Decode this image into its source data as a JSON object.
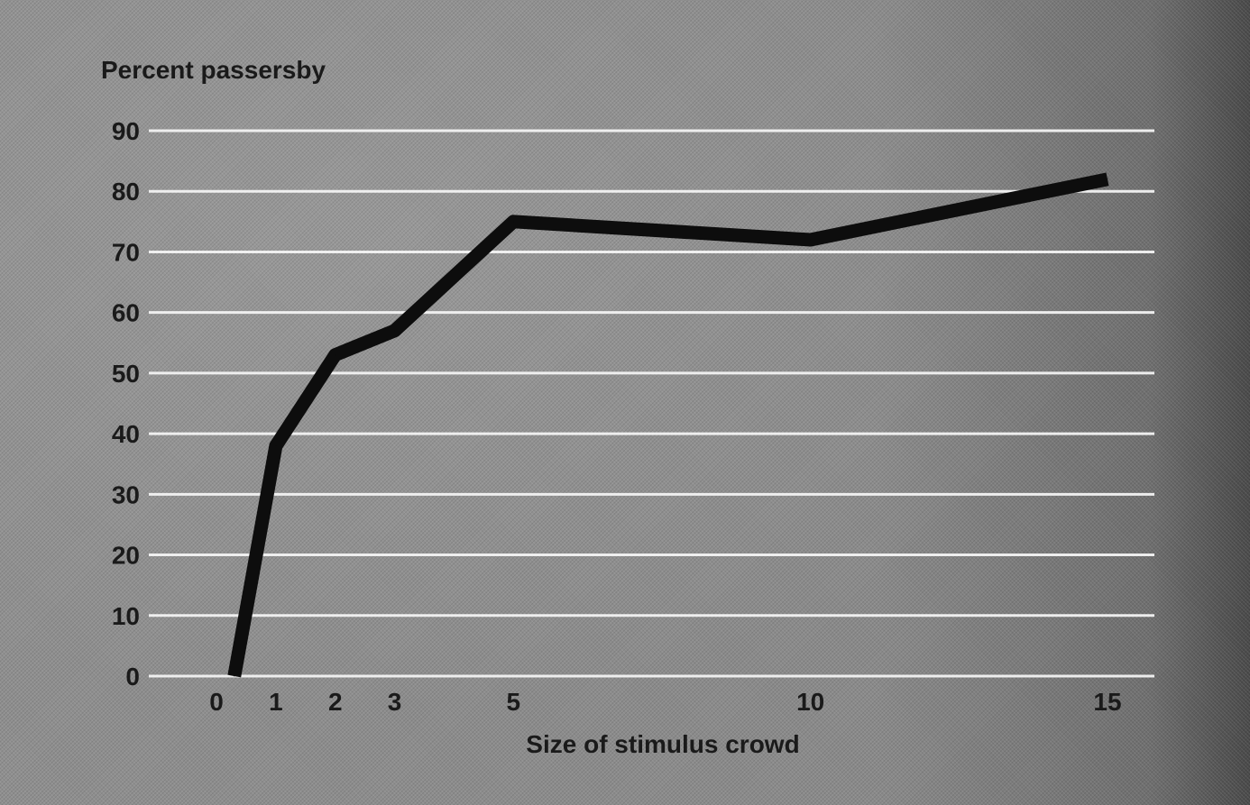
{
  "chart_data": {
    "type": "line",
    "ylabel": "Percent passersby",
    "xlabel": "Size of stimulus crowd",
    "y_ticks": [
      "0",
      "10",
      "20",
      "30",
      "40",
      "50",
      "60",
      "70",
      "80",
      "90"
    ],
    "x_ticks": [
      "0",
      "1",
      "2",
      "3",
      "5",
      "10",
      "15"
    ],
    "ylim": [
      0,
      90
    ],
    "xlim": [
      -1,
      15.5
    ],
    "grid": "horizontal",
    "series": [
      {
        "x": [
          0.3,
          1,
          2,
          3,
          5,
          10,
          15
        ],
        "y": [
          0,
          38,
          53,
          57,
          75,
          72,
          82
        ]
      }
    ],
    "colors": {
      "line": "#0d0d0d",
      "grid": "#f4f4f4",
      "background": "#8a8a8a"
    }
  }
}
